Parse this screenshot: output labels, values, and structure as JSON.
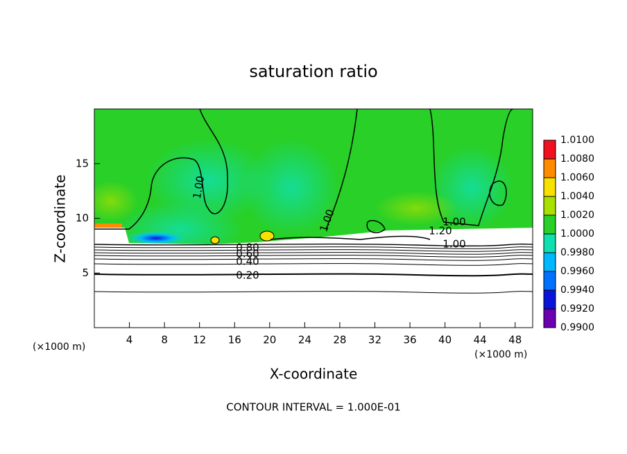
{
  "chart_data": {
    "type": "contour",
    "title": "saturation ratio",
    "x_label": "X-coordinate",
    "y_label": "Z-coordinate",
    "x_unit_label": "(×1000 m)",
    "footer": "CONTOUR INTERVAL = 1.000E-01",
    "xlim": [
      0,
      50
    ],
    "xticks": [
      4,
      8,
      12,
      16,
      20,
      24,
      28,
      32,
      36,
      40,
      44,
      48
    ],
    "ylim": [
      0,
      20
    ],
    "yticks": [
      5,
      10,
      15
    ],
    "contour_labels": [
      "1.00",
      "1.00",
      "1.00",
      "1.20",
      "1.00",
      "0.80",
      "0.60",
      "0.40",
      "0.20"
    ],
    "colorbar": {
      "levels": [
        {
          "value": 0.99,
          "label": "0.9900"
        },
        {
          "value": 0.992,
          "label": "0.9920"
        },
        {
          "value": 0.994,
          "label": "0.9940"
        },
        {
          "value": 0.996,
          "label": "0.9960"
        },
        {
          "value": 0.998,
          "label": "0.9980"
        },
        {
          "value": 1.0,
          "label": "1.0000"
        },
        {
          "value": 1.002,
          "label": "1.0020"
        },
        {
          "value": 1.004,
          "label": "1.0040"
        },
        {
          "value": 1.006,
          "label": "1.0060"
        },
        {
          "value": 1.008,
          "label": "1.0080"
        },
        {
          "value": 1.01,
          "label": "1.0100"
        }
      ],
      "colors": [
        "#6a00b0",
        "#0a14d8",
        "#0070ff",
        "#00b8ff",
        "#10e0b0",
        "#28d028",
        "#a8e000",
        "#f8e000",
        "#ff8c00",
        "#f01020"
      ]
    }
  }
}
